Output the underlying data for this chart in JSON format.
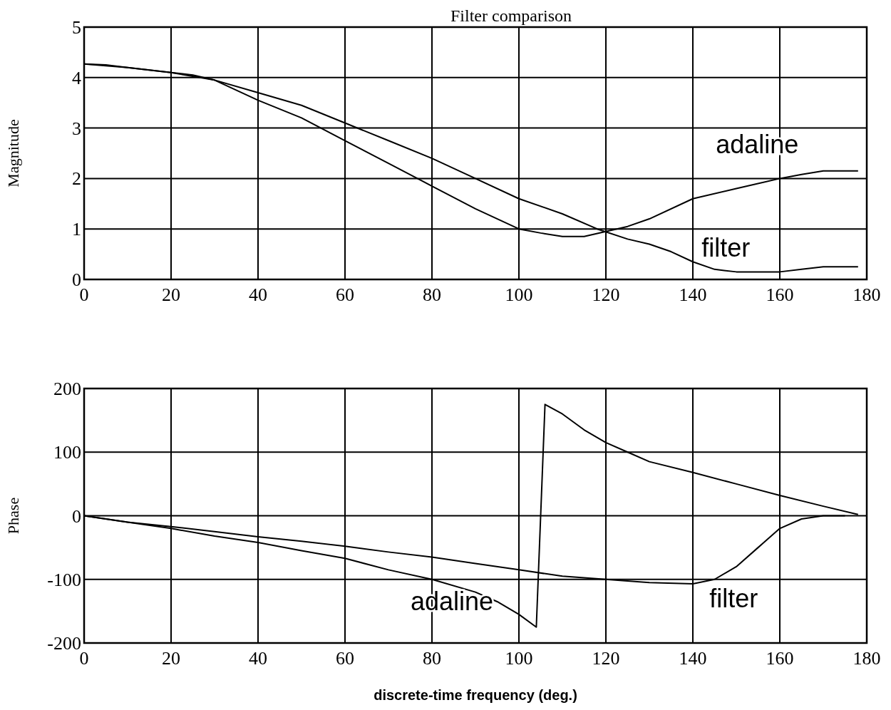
{
  "chart_data": [
    {
      "type": "line",
      "title": "Filter comparison",
      "ylabel": "Magnitude",
      "xlim": [
        0,
        180
      ],
      "ylim": [
        0,
        5
      ],
      "xticks": [
        0,
        20,
        40,
        60,
        80,
        100,
        120,
        140,
        160,
        180
      ],
      "yticks": [
        0,
        1,
        2,
        3,
        4,
        5
      ],
      "grid": true,
      "series": [
        {
          "name": "adaline",
          "color": "#000000",
          "x": [
            0,
            5,
            10,
            20,
            25,
            30,
            40,
            50,
            60,
            70,
            80,
            90,
            100,
            105,
            110,
            115,
            120,
            125,
            130,
            140,
            150,
            160,
            165,
            170,
            178
          ],
          "values": [
            4.27,
            4.25,
            4.2,
            4.1,
            4.05,
            3.95,
            3.55,
            3.2,
            2.75,
            2.3,
            1.85,
            1.4,
            1.0,
            0.92,
            0.85,
            0.85,
            0.95,
            1.05,
            1.2,
            1.6,
            1.8,
            2.0,
            2.08,
            2.15,
            2.15
          ]
        },
        {
          "name": "filter",
          "color": "#000000",
          "x": [
            0,
            10,
            20,
            30,
            40,
            50,
            60,
            70,
            80,
            90,
            100,
            110,
            118,
            125,
            130,
            135,
            140,
            145,
            150,
            155,
            160,
            165,
            170,
            178
          ],
          "values": [
            4.27,
            4.2,
            4.1,
            3.95,
            3.7,
            3.45,
            3.1,
            2.75,
            2.4,
            2.0,
            1.6,
            1.3,
            1.0,
            0.8,
            0.7,
            0.55,
            0.35,
            0.2,
            0.15,
            0.15,
            0.15,
            0.2,
            0.25,
            0.25
          ]
        }
      ],
      "legend": false
    },
    {
      "type": "line",
      "ylabel": "Phase",
      "xlabel": "discrete-time frequency (deg.)",
      "xlim": [
        0,
        180
      ],
      "ylim": [
        -200,
        200
      ],
      "xticks": [
        0,
        20,
        40,
        60,
        80,
        100,
        120,
        140,
        160,
        180
      ],
      "yticks": [
        -200,
        -100,
        0,
        100,
        200
      ],
      "grid": true,
      "series": [
        {
          "name": "adaline",
          "color": "#000000",
          "x": [
            0,
            10,
            20,
            30,
            40,
            50,
            60,
            70,
            80,
            90,
            95,
            100,
            104,
            106,
            110,
            115,
            120,
            125,
            130,
            140,
            150,
            160,
            170,
            178
          ],
          "values": [
            0,
            -10,
            -20,
            -32,
            -42,
            -55,
            -67,
            -85,
            -100,
            -120,
            -135,
            -155,
            -175,
            175,
            160,
            135,
            115,
            100,
            85,
            68,
            50,
            32,
            15,
            2
          ]
        },
        {
          "name": "filter",
          "color": "#000000",
          "x": [
            0,
            10,
            20,
            30,
            40,
            50,
            60,
            70,
            80,
            90,
            100,
            110,
            120,
            130,
            140,
            145,
            150,
            155,
            160,
            165,
            170,
            175
          ],
          "values": [
            0,
            -10,
            -17,
            -25,
            -33,
            -40,
            -48,
            -57,
            -65,
            -75,
            -85,
            -95,
            -100,
            -105,
            -107,
            -100,
            -80,
            -50,
            -20,
            -5,
            0,
            0
          ]
        }
      ],
      "legend": false
    }
  ]
}
